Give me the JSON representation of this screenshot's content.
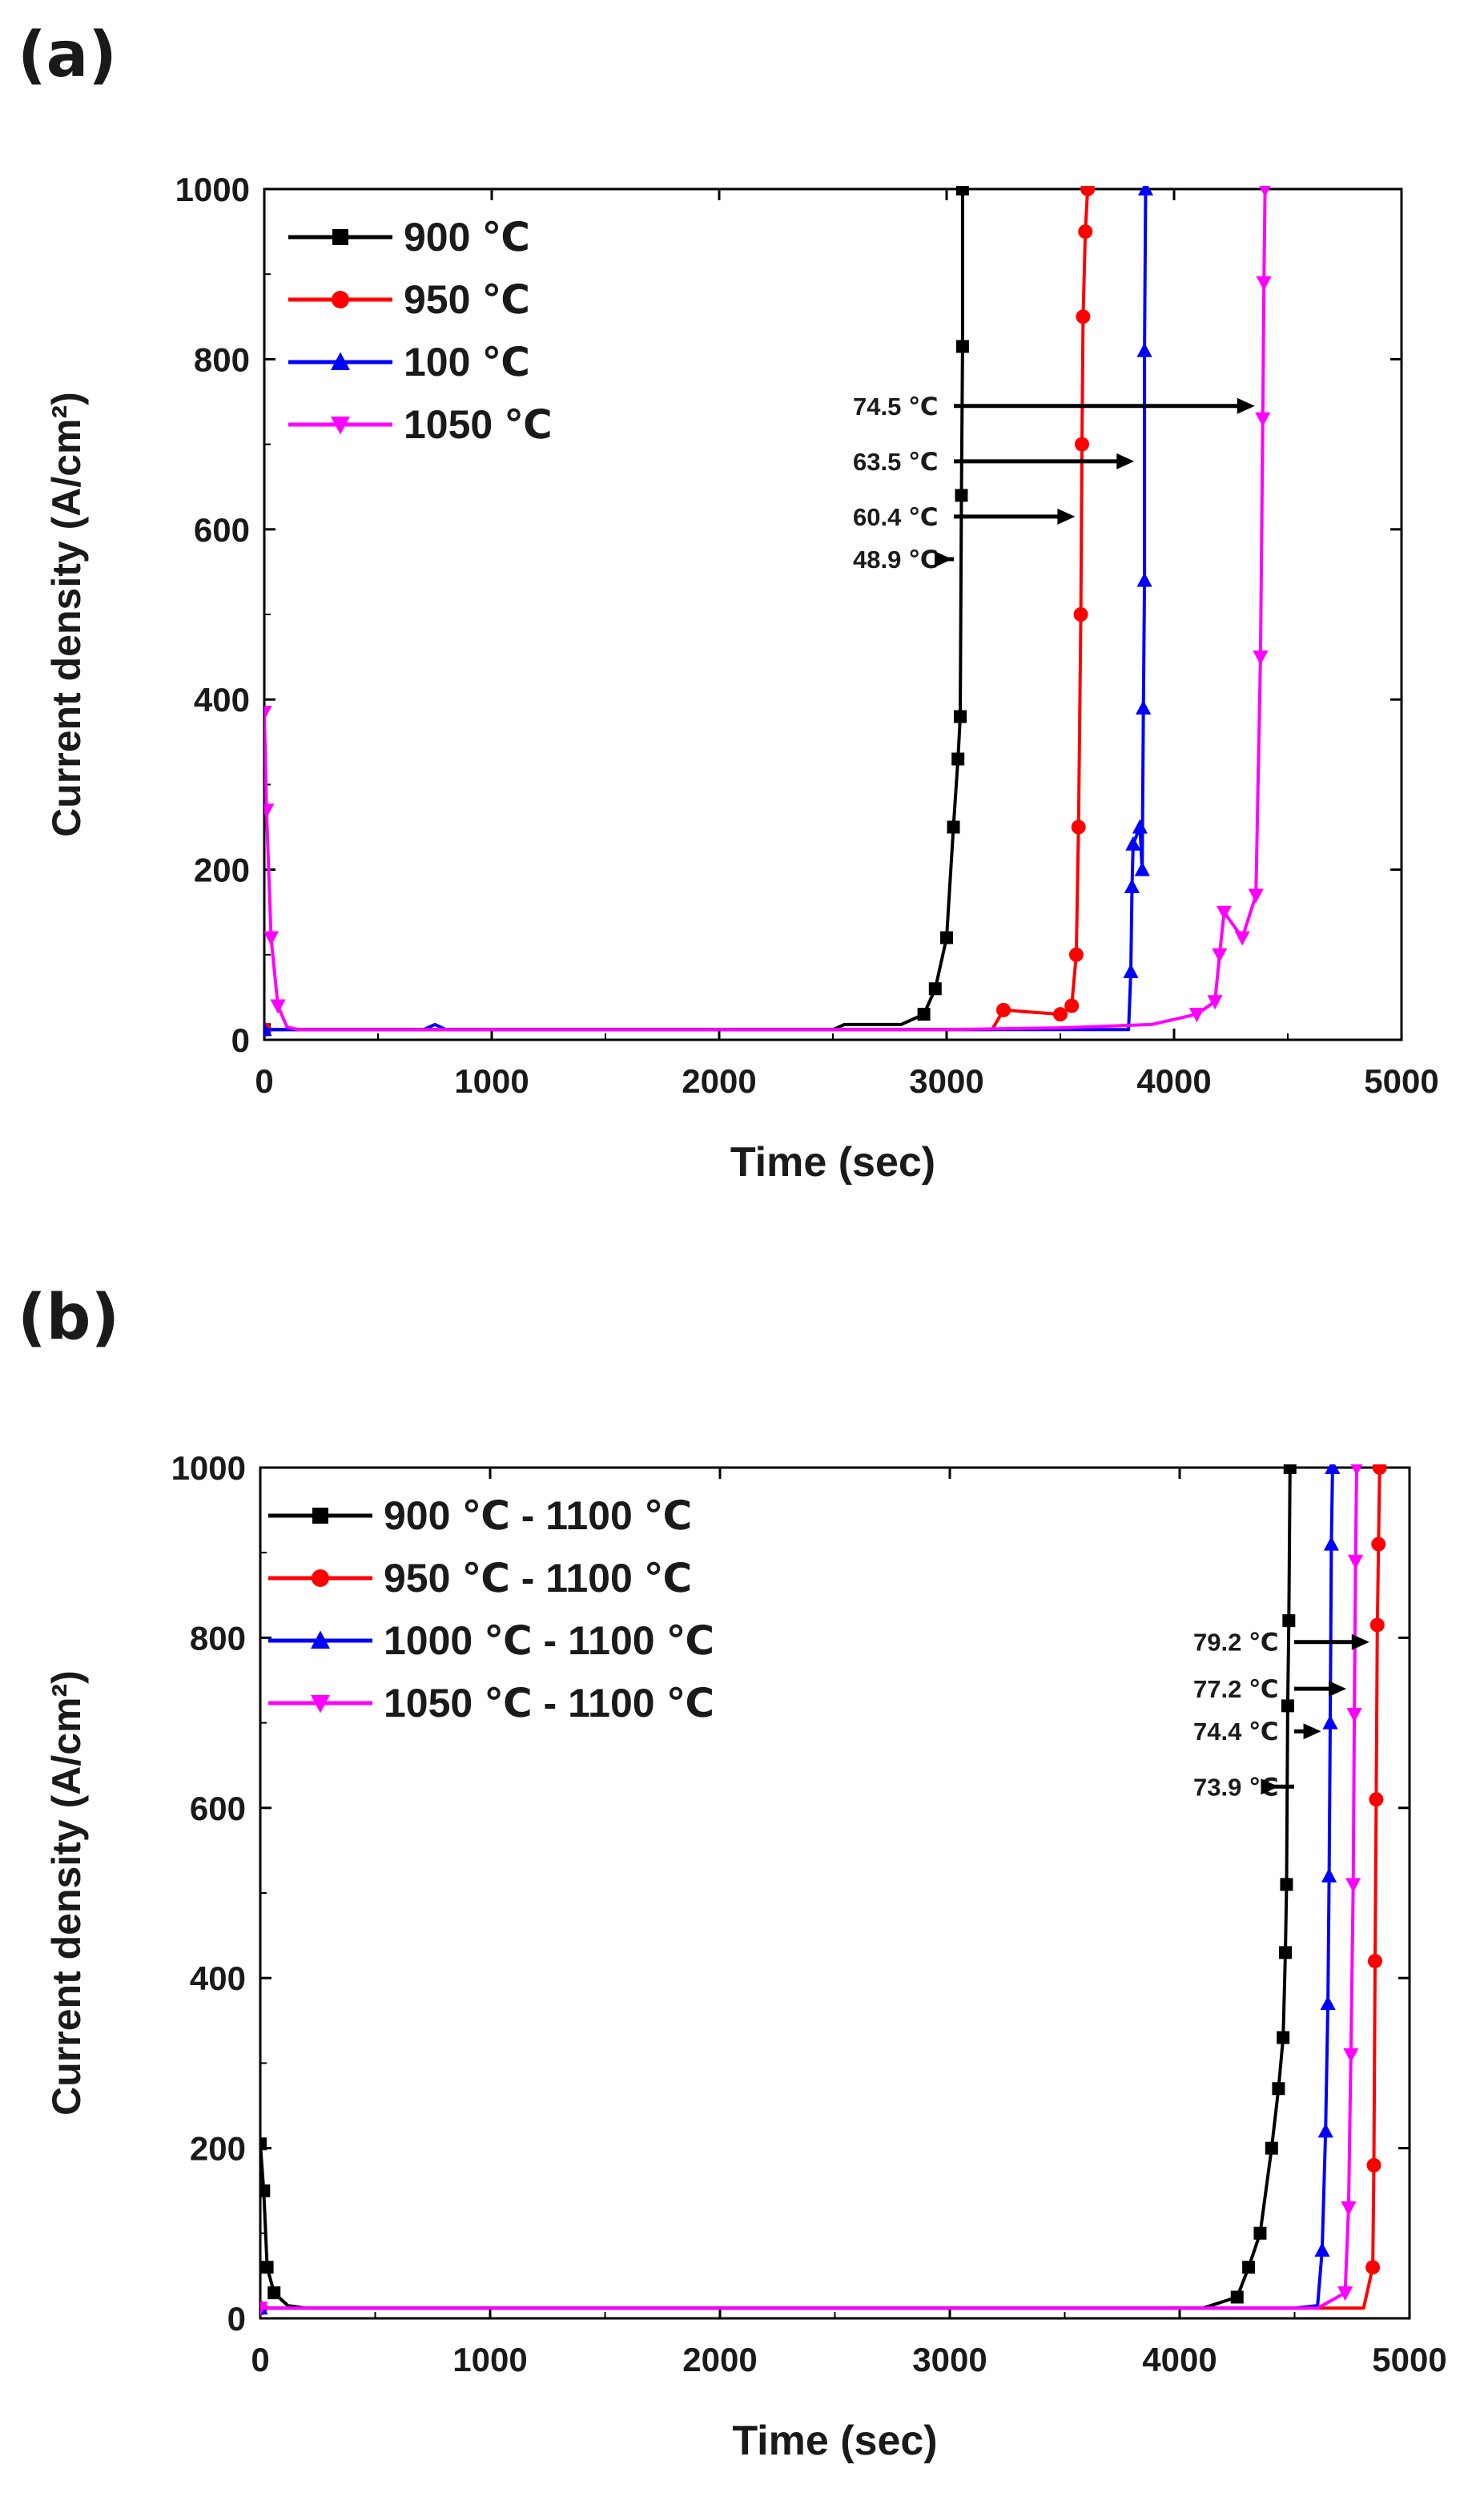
{
  "panels": [
    {
      "label": "(a)"
    },
    {
      "label": "(b)"
    }
  ],
  "chart_data": [
    {
      "type": "line",
      "title": "",
      "xlabel": "Time (sec)",
      "ylabel": "Current density (A/cm²)",
      "xlim": [
        0,
        5000
      ],
      "ylim": [
        0,
        1000
      ],
      "xticks": [
        0,
        1000,
        2000,
        3000,
        4000,
        5000
      ],
      "yticks": [
        0,
        200,
        400,
        600,
        800,
        1000
      ],
      "grid": false,
      "legend_position": "top-left",
      "series": [
        {
          "name": "900 ℃",
          "color": "#000000",
          "marker": "square",
          "x": [
            0,
            100,
            2500,
            2550,
            2800,
            2900,
            2950,
            3000,
            3030,
            3050,
            3060,
            3065,
            3070,
            3070
          ],
          "y": [
            12,
            12,
            12,
            18,
            18,
            30,
            60,
            120,
            250,
            330,
            380,
            640,
            815,
            1000
          ]
        },
        {
          "name": "950 ℃",
          "color": "#ff0000",
          "marker": "circle",
          "x": [
            0,
            100,
            3200,
            3250,
            3500,
            3550,
            3570,
            3580,
            3590,
            3595,
            3600,
            3610,
            3620
          ],
          "y": [
            12,
            12,
            12,
            35,
            30,
            40,
            100,
            250,
            500,
            700,
            850,
            950,
            1000
          ]
        },
        {
          "name": "100 ℃",
          "color": "#0000ff",
          "marker": "triangle-up",
          "x": [
            0,
            100,
            700,
            750,
            800,
            3800,
            3810,
            3815,
            3820,
            3850,
            3860,
            3865,
            3870,
            3870,
            3875
          ],
          "y": [
            12,
            12,
            12,
            18,
            12,
            12,
            80,
            180,
            230,
            250,
            200,
            390,
            540,
            810,
            1000
          ]
        },
        {
          "name": "1050 ℃",
          "color": "#ff00ff",
          "marker": "triangle-down",
          "x": [
            0,
            10,
            30,
            60,
            100,
            150,
            3000,
            3500,
            3900,
            4100,
            4180,
            4200,
            4220,
            4300,
            4360,
            4380,
            4390,
            4395,
            4400
          ],
          "y": [
            385,
            270,
            120,
            40,
            15,
            12,
            12,
            14,
            18,
            30,
            45,
            100,
            150,
            120,
            170,
            450,
            730,
            890,
            1000
          ]
        }
      ],
      "annotations": [
        {
          "text": "74.5 ℃",
          "y": 745,
          "arrow_to_x": 4390
        },
        {
          "text": "63.5 ℃",
          "y": 680,
          "arrow_to_x": 3860
        },
        {
          "text": "60.4 ℃",
          "y": 615,
          "arrow_to_x": 3600
        },
        {
          "text": "48.9 ℃",
          "y": 565,
          "arrow_to_x": 3060
        }
      ]
    },
    {
      "type": "line",
      "title": "",
      "xlabel": "Time (sec)",
      "ylabel": "Current density (A/cm²)",
      "xlim": [
        0,
        5000
      ],
      "ylim": [
        0,
        1000
      ],
      "xticks": [
        0,
        1000,
        2000,
        3000,
        4000,
        5000
      ],
      "yticks": [
        0,
        200,
        400,
        600,
        800,
        1000
      ],
      "grid": false,
      "legend_position": "top-left",
      "series": [
        {
          "name": "900 ℃ - 1100  ℃",
          "color": "#000000",
          "marker": "square",
          "x": [
            0,
            15,
            30,
            60,
            120,
            200,
            4100,
            4250,
            4300,
            4350,
            4400,
            4430,
            4450,
            4460,
            4465,
            4470,
            4475,
            4480
          ],
          "y": [
            205,
            150,
            60,
            30,
            15,
            12,
            12,
            25,
            60,
            100,
            200,
            270,
            330,
            430,
            510,
            720,
            820,
            1000
          ]
        },
        {
          "name": "950 ℃ - 1100  ℃",
          "color": "#ff0000",
          "marker": "circle",
          "x": [
            0,
            100,
            4700,
            4800,
            4840,
            4845,
            4850,
            4855,
            4860,
            4865,
            4870
          ],
          "y": [
            12,
            12,
            12,
            12,
            60,
            180,
            420,
            610,
            815,
            910,
            1000
          ]
        },
        {
          "name": "1000 ℃ - 1100 ℃",
          "color": "#0000ff",
          "marker": "triangle-up",
          "x": [
            0,
            100,
            4500,
            4600,
            4620,
            4635,
            4645,
            4650,
            4655,
            4660,
            4665
          ],
          "y": [
            12,
            12,
            12,
            15,
            80,
            220,
            370,
            520,
            700,
            910,
            1000
          ]
        },
        {
          "name": "1050 ℃ - 1100 ℃",
          "color": "#ff00ff",
          "marker": "triangle-down",
          "x": [
            0,
            100,
            4600,
            4720,
            4735,
            4745,
            4755,
            4760,
            4765,
            4770
          ],
          "y": [
            12,
            12,
            12,
            30,
            130,
            310,
            510,
            710,
            890,
            1000
          ]
        }
      ],
      "annotations": [
        {
          "text": "79.2 ℃",
          "y": 795,
          "arrow_to_x": 4860
        },
        {
          "text": "77.2 ℃",
          "y": 740,
          "arrow_to_x": 4760
        },
        {
          "text": "74.4 ℃",
          "y": 690,
          "arrow_to_x": 4650
        },
        {
          "text": "73.9 ℃",
          "y": 625,
          "arrow_to_x": 4465
        }
      ]
    }
  ]
}
